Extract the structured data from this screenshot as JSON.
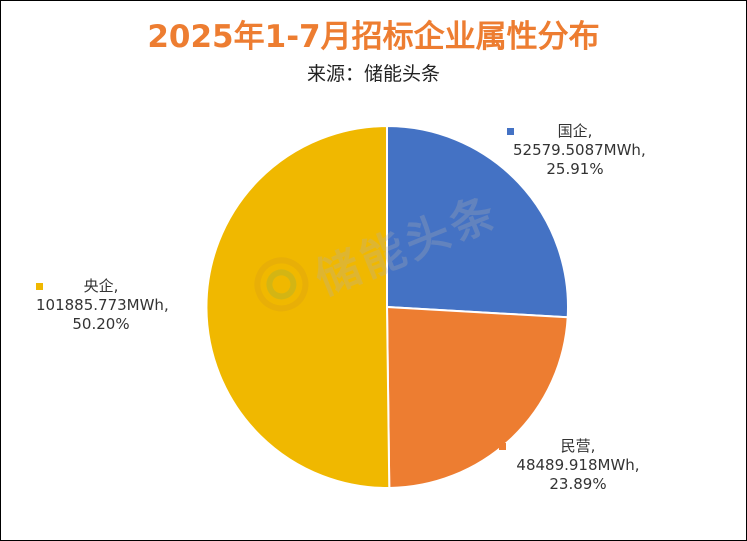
{
  "title": "2025年1-7月招标企业属性分布",
  "subtitle": "来源：储能头条",
  "watermark_text": "储能头条",
  "colors": {
    "title": "#ed7d31",
    "guoqi": "#4472c4",
    "minying": "#ed7d31",
    "yangqi": "#f0b800"
  },
  "chart_data": {
    "type": "pie",
    "title": "2025年1-7月招标企业属性分布",
    "subtitle": "来源：储能头条",
    "categories": [
      "国企",
      "民营",
      "央企"
    ],
    "values": [
      52579.5087,
      48489.918,
      101885.773
    ],
    "units": "MWh",
    "percentages": [
      "25.91%",
      "23.89%",
      "50.20%"
    ],
    "labels": [
      {
        "name": "国企,",
        "value": "52579.5087MWh,",
        "pct": "25.91%"
      },
      {
        "name": "民营,",
        "value": "48489.918MWh,",
        "pct": "23.89%"
      },
      {
        "name": "央企,",
        "value": "101885.773MWh,",
        "pct": "50.20%"
      }
    ]
  }
}
